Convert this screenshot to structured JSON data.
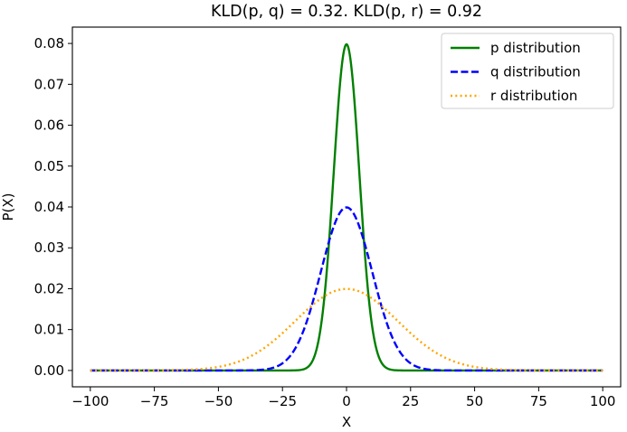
{
  "chart_data": {
    "type": "line",
    "title": "KLD(p, q) = 0.32. KLD(p, r) = 0.92",
    "xlabel": "X",
    "ylabel": "P(X)",
    "xlim": [
      -107,
      107
    ],
    "ylim": [
      -0.004,
      0.084
    ],
    "xticks": [
      -100,
      -75,
      -50,
      -25,
      0,
      25,
      50,
      75,
      100
    ],
    "xtick_labels": [
      "−100",
      "−75",
      "−50",
      "−25",
      "0",
      "25",
      "50",
      "75",
      "100"
    ],
    "yticks": [
      0.0,
      0.01,
      0.02,
      0.03,
      0.04,
      0.05,
      0.06,
      0.07,
      0.08
    ],
    "ytick_labels": [
      "0.00",
      "0.01",
      "0.02",
      "0.03",
      "0.04",
      "0.05",
      "0.06",
      "0.07",
      "0.08"
    ],
    "grid": false,
    "legend_position": "top-right",
    "x_range": [
      -100,
      100
    ],
    "series": [
      {
        "name": "p distribution",
        "distribution": "normal",
        "mean": 0,
        "std": 5,
        "color": "#008000",
        "style": "solid"
      },
      {
        "name": "q distribution",
        "distribution": "normal",
        "mean": 0,
        "std": 10,
        "color": "#0000ff",
        "style": "dashed"
      },
      {
        "name": "r distribution",
        "distribution": "normal",
        "mean": 0,
        "std": 20,
        "color": "#ffa500",
        "style": "dotted"
      }
    ]
  }
}
